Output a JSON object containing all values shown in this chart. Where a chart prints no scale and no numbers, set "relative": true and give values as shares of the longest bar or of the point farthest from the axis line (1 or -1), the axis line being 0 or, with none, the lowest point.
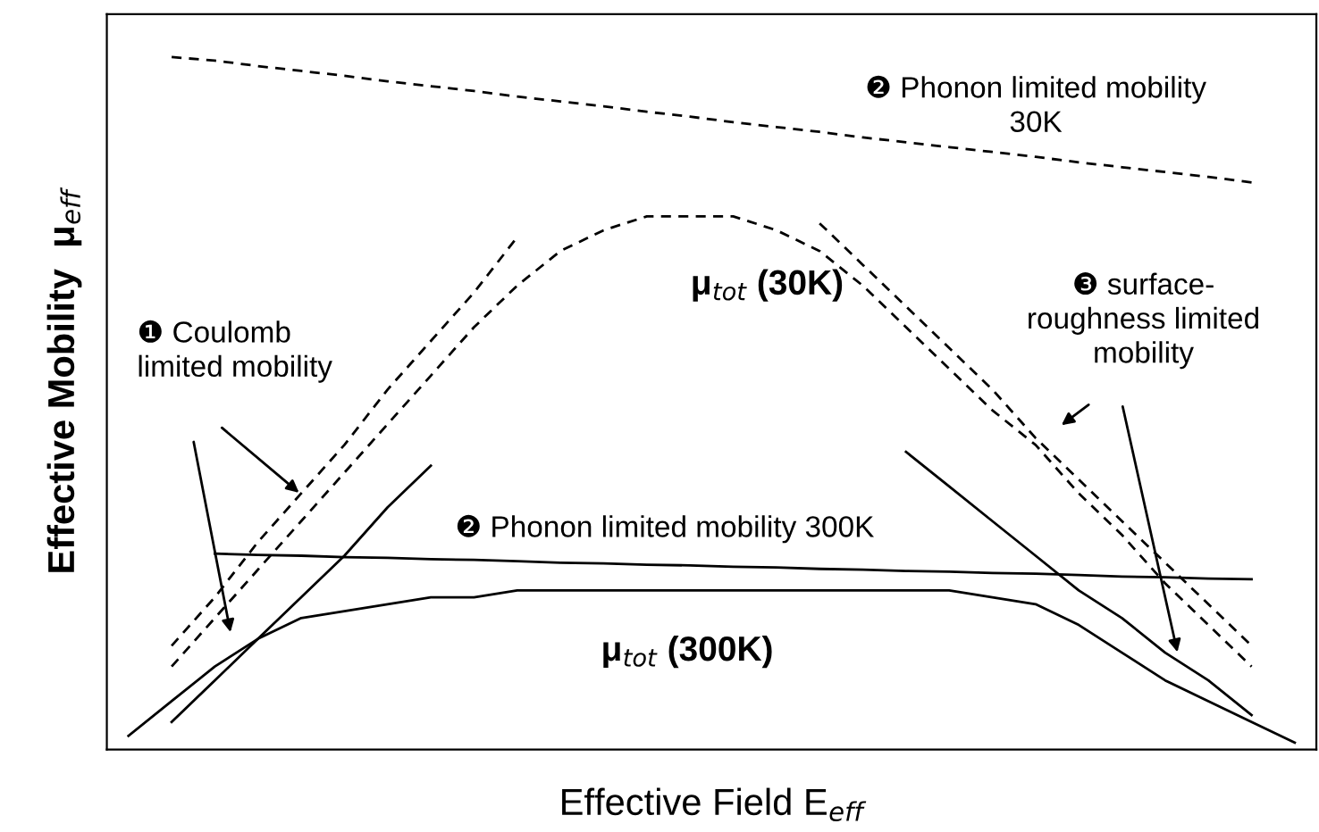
{
  "chart_data": {
    "type": "line",
    "relative": true,
    "xlabel": "Effective Field E$_{eff}$",
    "ylabel": "Effective Mobility  μ$_{eff}$",
    "categories": [
      null,
      null,
      null,
      null,
      null,
      null,
      null,
      null,
      null,
      null,
      null,
      null,
      null,
      null,
      null,
      null,
      null,
      null,
      null,
      null,
      null,
      null,
      null,
      null,
      null,
      null,
      null,
      null
    ],
    "series": [
      {
        "color": "#000000",
        "line_style": "dashed",
        "values": [
          null,
          1.0,
          0.995,
          0.987,
          0.98,
          0.973,
          0.965,
          0.958,
          0.951,
          0.943,
          0.936,
          0.929,
          0.921,
          0.914,
          0.906,
          0.899,
          0.892,
          0.884,
          0.877,
          0.87,
          0.863,
          0.856,
          0.848,
          0.841,
          0.834,
          0.827,
          0.819,
          null
        ]
      },
      {
        "color": "#000000",
        "line_style": "dashed",
        "values": [
          null,
          0.12,
          0.19,
          0.26,
          0.33,
          0.4,
          0.47,
          0.54,
          0.61,
          0.67,
          0.72,
          0.75,
          0.77,
          0.77,
          0.77,
          0.75,
          0.72,
          0.67,
          0.61,
          0.55,
          0.49,
          0.44,
          0.37,
          0.31,
          0.24,
          0.18,
          0.12,
          null
        ]
      },
      {
        "color": "#000000",
        "line_style": "dashed",
        "values": [
          null,
          0.15,
          0.22,
          0.3,
          0.37,
          0.44,
          0.52,
          0.59,
          0.66,
          0.74,
          null,
          null,
          null,
          null,
          null,
          null,
          null,
          null,
          null,
          null,
          null,
          null,
          null,
          null,
          null,
          null,
          null,
          null
        ]
      },
      {
        "color": "#000000",
        "line_style": "dashed",
        "values": [
          null,
          null,
          null,
          null,
          null,
          null,
          null,
          null,
          null,
          null,
          null,
          null,
          null,
          null,
          null,
          null,
          0.76,
          0.7,
          0.64,
          0.58,
          0.52,
          0.45,
          0.39,
          0.33,
          0.27,
          0.21,
          0.15,
          null
        ]
      },
      {
        "color": "#000000",
        "line_style": "solid",
        "values": [
          null,
          null,
          0.283,
          0.281,
          0.28,
          0.278,
          0.277,
          0.275,
          0.274,
          0.272,
          0.27,
          0.269,
          0.267,
          0.266,
          0.264,
          0.263,
          0.261,
          0.26,
          0.258,
          0.257,
          0.255,
          0.254,
          0.252,
          0.25,
          0.249,
          0.247,
          0.246,
          null
        ]
      },
      {
        "color": "#000000",
        "line_style": "solid",
        "values": [
          null,
          0.04,
          0.1,
          0.16,
          0.22,
          0.28,
          0.35,
          0.41,
          null,
          null,
          null,
          null,
          null,
          null,
          null,
          null,
          null,
          null,
          null,
          null,
          null,
          null,
          null,
          null,
          null,
          null,
          null,
          null
        ]
      },
      {
        "color": "#000000",
        "line_style": "solid",
        "values": [
          null,
          null,
          null,
          null,
          null,
          null,
          null,
          null,
          null,
          null,
          null,
          null,
          null,
          null,
          null,
          null,
          null,
          null,
          0.43,
          0.38,
          0.33,
          0.28,
          0.23,
          0.19,
          0.14,
          0.1,
          0.05,
          null
        ]
      },
      {
        "color": "#000000",
        "line_style": "solid",
        "values": [
          0.02,
          0.07,
          0.12,
          0.16,
          0.19,
          0.2,
          0.21,
          0.22,
          0.22,
          0.23,
          0.23,
          0.23,
          0.23,
          0.23,
          0.23,
          0.23,
          0.23,
          0.23,
          0.23,
          0.23,
          0.22,
          0.21,
          0.18,
          0.14,
          0.1,
          0.07,
          0.04,
          0.01
        ]
      }
    ],
    "annotations": [
      "❷ Phonon limited mobility\n30K",
      "μ$_{tot}$ (30K)",
      "❶ Coulomb\nlimited mobility",
      "❸ surface-\nroughness limited\nmobility",
      "❷ Phonon limited mobility 300K",
      "μ$_{tot}$ (300K)"
    ]
  }
}
